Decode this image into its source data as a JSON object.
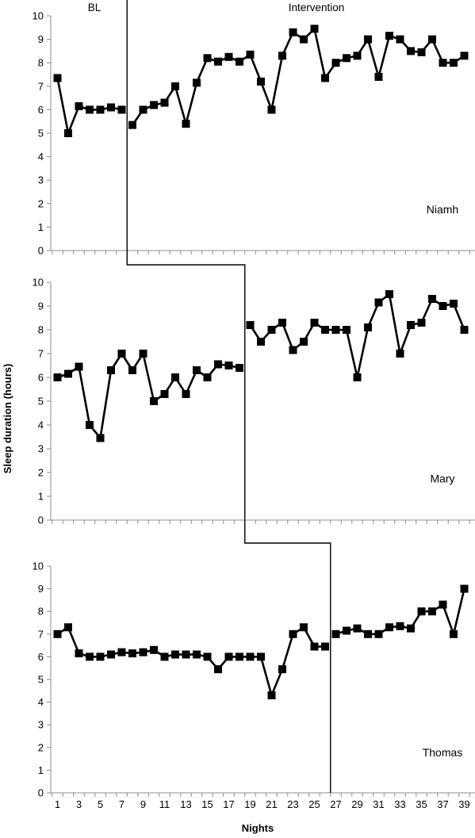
{
  "chart_data": {
    "type": "line",
    "ylabel": "Sleep duration (hours)",
    "xlabel": "Nights",
    "phases": [
      "BL",
      "Intervention"
    ],
    "ylim": [
      0,
      10
    ],
    "yticks": [
      0,
      1,
      2,
      3,
      4,
      5,
      6,
      7,
      8,
      9,
      10
    ],
    "xticks": [
      1,
      3,
      5,
      7,
      9,
      11,
      13,
      15,
      17,
      19,
      21,
      23,
      25,
      27,
      29,
      31,
      33,
      35,
      37,
      39
    ],
    "xlim": [
      1,
      39
    ],
    "grid": false,
    "panels": [
      {
        "participant": "Niamh",
        "baseline_nights": 7,
        "baseline": [
          [
            1,
            7.35
          ],
          [
            2,
            5.0
          ],
          [
            3,
            6.15
          ],
          [
            4,
            6.0
          ],
          [
            5,
            6.0
          ],
          [
            6,
            6.1
          ],
          [
            7,
            6.0
          ]
        ],
        "intervention": [
          [
            8,
            5.35
          ],
          [
            9,
            6.0
          ],
          [
            10,
            6.2
          ],
          [
            11,
            6.3
          ],
          [
            12,
            7.0
          ],
          [
            13,
            5.4
          ],
          [
            14,
            7.15
          ],
          [
            15,
            8.2
          ],
          [
            16,
            8.05
          ],
          [
            17,
            8.25
          ],
          [
            18,
            8.05
          ],
          [
            19,
            8.35
          ],
          [
            20,
            7.2
          ],
          [
            21,
            6.0
          ],
          [
            22,
            8.3
          ],
          [
            23,
            9.3
          ],
          [
            24,
            9.0
          ],
          [
            25,
            9.45
          ],
          [
            26,
            7.35
          ],
          [
            27,
            8.0
          ],
          [
            28,
            8.2
          ],
          [
            29,
            8.3
          ],
          [
            30,
            9.0
          ],
          [
            31,
            7.4
          ],
          [
            32,
            9.15
          ],
          [
            33,
            9.0
          ],
          [
            34,
            8.5
          ],
          [
            35,
            8.45
          ],
          [
            36,
            9.0
          ],
          [
            37,
            8.0
          ],
          [
            38,
            8.0
          ],
          [
            39,
            8.3
          ]
        ]
      },
      {
        "participant": "Mary",
        "baseline_nights": 18,
        "baseline": [
          [
            1,
            6.0
          ],
          [
            2,
            6.15
          ],
          [
            3,
            6.45
          ],
          [
            4,
            4.0
          ],
          [
            5,
            3.45
          ],
          [
            6,
            6.3
          ],
          [
            7,
            7.0
          ],
          [
            8,
            6.3
          ],
          [
            9,
            7.0
          ],
          [
            10,
            5.0
          ],
          [
            11,
            5.3
          ],
          [
            12,
            6.0
          ],
          [
            13,
            5.3
          ],
          [
            14,
            6.3
          ],
          [
            15,
            6.0
          ],
          [
            16,
            6.55
          ],
          [
            17,
            6.5
          ],
          [
            18,
            6.4
          ]
        ],
        "intervention": [
          [
            19,
            8.2
          ],
          [
            20,
            7.5
          ],
          [
            21,
            8.0
          ],
          [
            22,
            8.3
          ],
          [
            23,
            7.15
          ],
          [
            24,
            7.5
          ],
          [
            25,
            8.3
          ],
          [
            26,
            8.0
          ],
          [
            27,
            8.0
          ],
          [
            28,
            8.0
          ],
          [
            29,
            6.0
          ],
          [
            30,
            8.1
          ],
          [
            31,
            9.15
          ],
          [
            32,
            9.5
          ],
          [
            33,
            7.0
          ],
          [
            34,
            8.2
          ],
          [
            35,
            8.3
          ],
          [
            36,
            9.3
          ],
          [
            37,
            9.0
          ],
          [
            38,
            9.1
          ],
          [
            39,
            8.0
          ]
        ]
      },
      {
        "participant": "Thomas",
        "baseline_nights": 26,
        "baseline": [
          [
            1,
            7.0
          ],
          [
            2,
            7.3
          ],
          [
            3,
            6.15
          ],
          [
            4,
            6.0
          ],
          [
            5,
            6.0
          ],
          [
            6,
            6.1
          ],
          [
            7,
            6.2
          ],
          [
            8,
            6.15
          ],
          [
            9,
            6.2
          ],
          [
            10,
            6.3
          ],
          [
            11,
            6.0
          ],
          [
            12,
            6.1
          ],
          [
            13,
            6.1
          ],
          [
            14,
            6.1
          ],
          [
            15,
            6.0
          ],
          [
            16,
            5.45
          ],
          [
            17,
            6.0
          ],
          [
            18,
            6.0
          ],
          [
            19,
            6.0
          ],
          [
            20,
            6.0
          ],
          [
            21,
            4.3
          ],
          [
            22,
            5.45
          ],
          [
            23,
            7.0
          ],
          [
            24,
            7.3
          ],
          [
            25,
            6.45
          ],
          [
            26,
            6.45
          ]
        ],
        "intervention": [
          [
            27,
            7.0
          ],
          [
            28,
            7.15
          ],
          [
            29,
            7.25
          ],
          [
            30,
            7.0
          ],
          [
            31,
            7.0
          ],
          [
            32,
            7.3
          ],
          [
            33,
            7.35
          ],
          [
            34,
            7.25
          ],
          [
            35,
            8.0
          ],
          [
            36,
            8.0
          ],
          [
            37,
            8.3
          ],
          [
            38,
            7.0
          ],
          [
            39,
            9.0
          ]
        ]
      }
    ]
  }
}
